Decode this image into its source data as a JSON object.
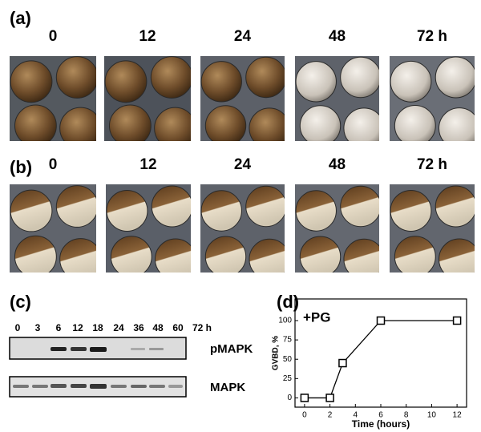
{
  "panel_a": {
    "label": "(a)",
    "times": [
      "0",
      "12",
      "24",
      "48",
      "72 h"
    ]
  },
  "panel_b": {
    "label": "(b)",
    "times": [
      "0",
      "12",
      "24",
      "48",
      "72 h"
    ]
  },
  "panel_c": {
    "label": "(c)",
    "lanes": [
      "0",
      "3",
      "6",
      "12",
      "18",
      "24",
      "36",
      "48",
      "60",
      "72 h"
    ],
    "blots": [
      "pMAPK",
      "MAPK"
    ]
  },
  "chart_data": {
    "type": "line",
    "label": "(d)",
    "annotation": "+PG",
    "xlabel": "Time (hours)",
    "ylabel": "GVBD, %",
    "x": [
      0,
      2,
      3,
      6,
      12
    ],
    "values": [
      0,
      0,
      45,
      100,
      100
    ],
    "color": "#000000",
    "xlim": [
      -0.75,
      12.75
    ],
    "xticks": [
      0,
      2,
      4,
      6,
      8,
      10,
      12
    ],
    "ylim": [
      -12,
      128
    ],
    "yticks": [
      0,
      25,
      50,
      75,
      100
    ]
  }
}
